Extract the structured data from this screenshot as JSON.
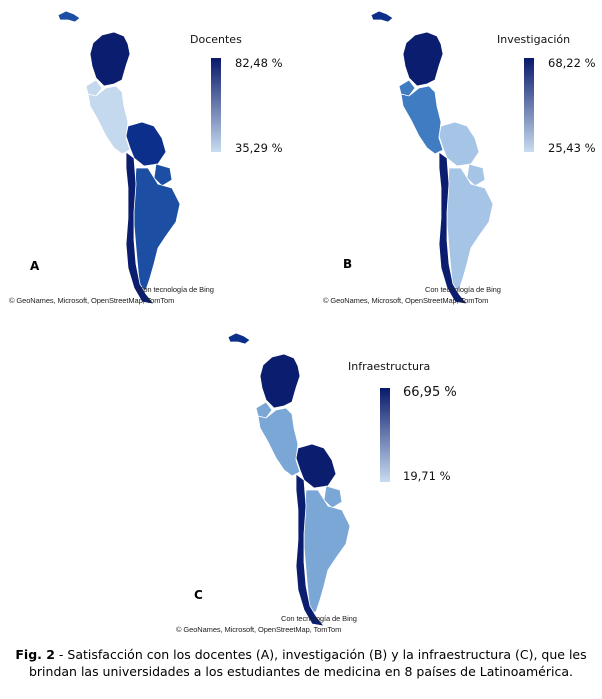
{
  "colors": {
    "c1": "#0a1d6e",
    "c2": "#0d2f8c",
    "c3": "#1c4fa3",
    "c4": "#3f7cc2",
    "c5": "#7aa7d6",
    "c6": "#a6c5e6",
    "c7": "#c4d8ee",
    "legend_top": "#08196b",
    "legend_bottom": "#c8dcf0"
  },
  "panels": [
    {
      "letter": "A",
      "legend_title": "Docentes",
      "legend_max": "82,48 %",
      "legend_min": "35,29 %",
      "credit_line1": "Con tecnología de Bing",
      "credit_line2": "© GeoNames, Microsoft, OpenStreetMap, TomTom",
      "fills": {
        "cuba": "c3",
        "colombia": "c1",
        "peru": "c7",
        "bolivia": "c2",
        "chile": "c1",
        "argentina": "c3",
        "paraguay": "c3",
        "ecuador": "c7"
      }
    },
    {
      "letter": "B",
      "legend_title": "Investigación",
      "legend_max": "68,22 %",
      "legend_min": "25,43 %",
      "credit_line1": "Con tecnología de Bing",
      "credit_line2": "© GeoNames, Microsoft, OpenStreetMap, TomTom",
      "fills": {
        "cuba": "c2",
        "colombia": "c1",
        "peru": "c4",
        "bolivia": "c6",
        "chile": "c1",
        "argentina": "c6",
        "paraguay": "c6",
        "ecuador": "c4"
      }
    },
    {
      "letter": "C",
      "legend_title": "Infraestructura",
      "legend_max": "66,95 %",
      "legend_min": "19,71 %",
      "credit_line1": "Con tecnología de Bing",
      "credit_line2": "© GeoNames, Microsoft, OpenStreetMap, TomTom",
      "fills": {
        "cuba": "c2",
        "colombia": "c1",
        "peru": "c5",
        "bolivia": "c1",
        "chile": "c1",
        "argentina": "c5",
        "paraguay": "c5",
        "ecuador": "c5"
      }
    }
  ],
  "caption": {
    "label": "Fig. 2",
    "text": " - Satisfacción con los docentes (A), investigación (B) y la infraestructura (C), que les brindan las universidades a los estudiantes de medicina en 8 países de Latinoamérica."
  }
}
